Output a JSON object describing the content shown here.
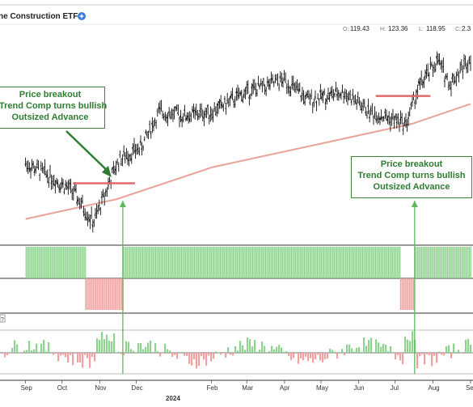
{
  "header": {
    "title": "ne Construction ETF",
    "ohlc": [
      {
        "k": "O:",
        "v": "119.43"
      },
      {
        "k": "H:",
        "v": "123.36"
      },
      {
        "k": "L:",
        "v": "118.95"
      },
      {
        "k": "C:",
        "v": "2.3"
      }
    ]
  },
  "annotations": {
    "left": [
      "Price breakout",
      "Trend Comp turns bullish",
      "Outsized Advance"
    ],
    "right": [
      "Price breakout",
      "Trend Comp turns bullish",
      "Outsized Advance"
    ]
  },
  "indicator_badge": "?",
  "colors": {
    "bar": "#111111",
    "ma": "#e8a39a",
    "resistance": "#e06a6a",
    "pos": "#8fd18f",
    "neg": "#f0a0a0",
    "annot": "#2e7d32",
    "marker": "#5fb85f"
  },
  "chart_data": {
    "type": "bar",
    "x_axis": {
      "ticks": [
        "Sep",
        "Oct",
        "Nov",
        "Dec",
        "Feb",
        "Mar",
        "Apr",
        "May",
        "Jun",
        "Jul",
        "Aug",
        "Se"
      ],
      "year_label": "2024"
    },
    "price": {
      "type": "ohlc",
      "series": [
        {
          "date": "2023-09-01",
          "close": 100
        },
        {
          "date": "2023-09-20",
          "close": 97
        },
        {
          "date": "2023-10-10",
          "close": 93
        },
        {
          "date": "2023-10-27",
          "close": 85
        },
        {
          "date": "2023-11-10",
          "close": 96
        },
        {
          "date": "2023-11-17",
          "close": 101
        },
        {
          "date": "2023-12-05",
          "close": 104
        },
        {
          "date": "2023-12-20",
          "close": 113
        },
        {
          "date": "2024-01-10",
          "close": 112
        },
        {
          "date": "2024-02-01",
          "close": 113
        },
        {
          "date": "2024-03-01",
          "close": 118
        },
        {
          "date": "2024-04-01",
          "close": 121
        },
        {
          "date": "2024-04-20",
          "close": 116
        },
        {
          "date": "2024-05-20",
          "close": 118
        },
        {
          "date": "2024-06-10",
          "close": 113
        },
        {
          "date": "2024-07-10",
          "close": 110
        },
        {
          "date": "2024-07-20",
          "close": 119
        },
        {
          "date": "2024-08-05",
          "close": 126
        },
        {
          "date": "2024-08-15",
          "close": 120
        },
        {
          "date": "2024-09-01",
          "close": 127
        }
      ],
      "moving_average": [
        {
          "date": "2023-09-01",
          "value": 86
        },
        {
          "date": "2023-11-15",
          "value": 91
        },
        {
          "date": "2024-02-01",
          "value": 99
        },
        {
          "date": "2024-05-01",
          "value": 105
        },
        {
          "date": "2024-07-15",
          "value": 110
        },
        {
          "date": "2024-09-01",
          "value": 115
        }
      ],
      "resistance_lines": [
        {
          "from": "2023-10-10",
          "to": "2023-11-30",
          "value": 95
        },
        {
          "from": "2024-06-15",
          "to": "2024-07-30",
          "value": 117
        }
      ],
      "breakouts": [
        "2023-11-20",
        "2024-07-17"
      ]
    },
    "trend_composite": {
      "type": "bar",
      "segments": [
        {
          "from": "2023-09-01",
          "to": "2023-10-20",
          "value": 4
        },
        {
          "from": "2023-10-20",
          "to": "2023-11-20",
          "value": -4
        },
        {
          "from": "2023-11-20",
          "to": "2024-07-05",
          "value": 4
        },
        {
          "from": "2024-07-05",
          "to": "2024-07-17",
          "value": -4
        },
        {
          "from": "2024-07-17",
          "to": "2024-09-01",
          "value": 4
        }
      ]
    },
    "oscillator": {
      "type": "bar",
      "range": [
        -5,
        5
      ]
    }
  }
}
